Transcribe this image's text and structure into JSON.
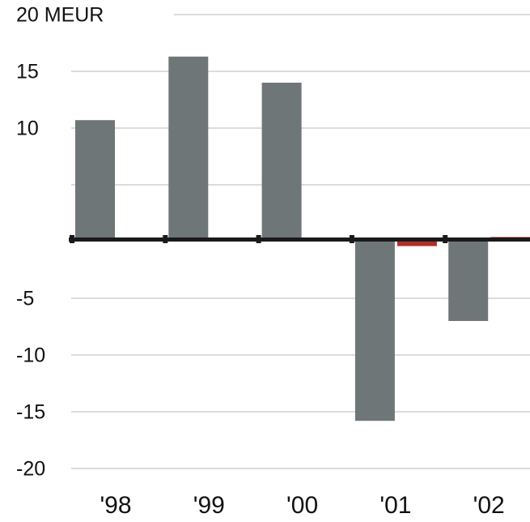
{
  "chart_data": {
    "type": "bar",
    "categories": [
      "'98",
      "'99",
      "'00",
      "'01",
      "'02"
    ],
    "series": [
      {
        "color": "#6f7677",
        "values": [
          10.7,
          16.3,
          14.0,
          -15.8,
          -7.0
        ]
      },
      {
        "color": "#b03028",
        "values": [
          null,
          null,
          null,
          -0.4,
          0.4
        ]
      }
    ],
    "ylim": [
      -20,
      20
    ],
    "yticks": [
      -20,
      -15,
      -10,
      -5,
      {
        "value": 5,
        "label": null
      },
      10,
      15,
      {
        "value": 20,
        "label": "20 MEUR"
      }
    ],
    "grid": true
  }
}
